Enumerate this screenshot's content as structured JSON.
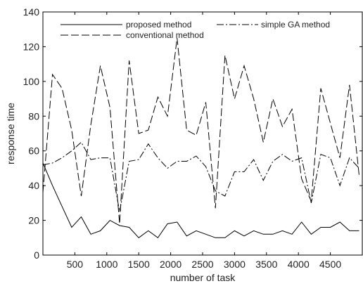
{
  "chart_data": {
    "type": "line",
    "title": "",
    "xlabel": "number of task",
    "ylabel": "response time",
    "xlim": [
      0,
      5000
    ],
    "ylim": [
      0,
      140
    ],
    "xticks": [
      500,
      1000,
      1500,
      2000,
      2500,
      3000,
      3500,
      4000,
      4500
    ],
    "yticks": [
      0,
      20,
      40,
      60,
      80,
      100,
      120,
      140
    ],
    "grid": false,
    "legend_position": "top",
    "x": [
      0,
      150,
      300,
      450,
      600,
      750,
      900,
      1050,
      1200,
      1350,
      1500,
      1650,
      1800,
      1950,
      2100,
      2250,
      2400,
      2550,
      2700,
      2850,
      3000,
      3150,
      3300,
      3450,
      3600,
      3750,
      3900,
      4050,
      4200,
      4350,
      4500,
      4650,
      4800,
      4950
    ],
    "series": [
      {
        "name": "proposed method",
        "style": "solid",
        "values": [
          53,
          40,
          28,
          16,
          22,
          12,
          14,
          20,
          17,
          16,
          10,
          14,
          10,
          18,
          19,
          11,
          14,
          12,
          10,
          10,
          14,
          11,
          14,
          12,
          12,
          14,
          12,
          19,
          12,
          16,
          16,
          19,
          14,
          14
        ]
      },
      {
        "name": "simple GA method",
        "style": "dashdot",
        "values": [
          52,
          53,
          56,
          60,
          65,
          55,
          56,
          56,
          25,
          54,
          55,
          64,
          56,
          50,
          54,
          54,
          57,
          51,
          37,
          34,
          48,
          48,
          55,
          43,
          54,
          58,
          54,
          56,
          30,
          58,
          56,
          40,
          56,
          50
        ]
      },
      {
        "name": "conventional method",
        "style": "dashed",
        "values": [
          36,
          104,
          96,
          72,
          34,
          75,
          109,
          85,
          18,
          112,
          70,
          72,
          91,
          80,
          125,
          72,
          69,
          88,
          27,
          115,
          90,
          109,
          90,
          65,
          90,
          74,
          84,
          44,
          31,
          96,
          76,
          56,
          98,
          46
        ]
      }
    ]
  }
}
